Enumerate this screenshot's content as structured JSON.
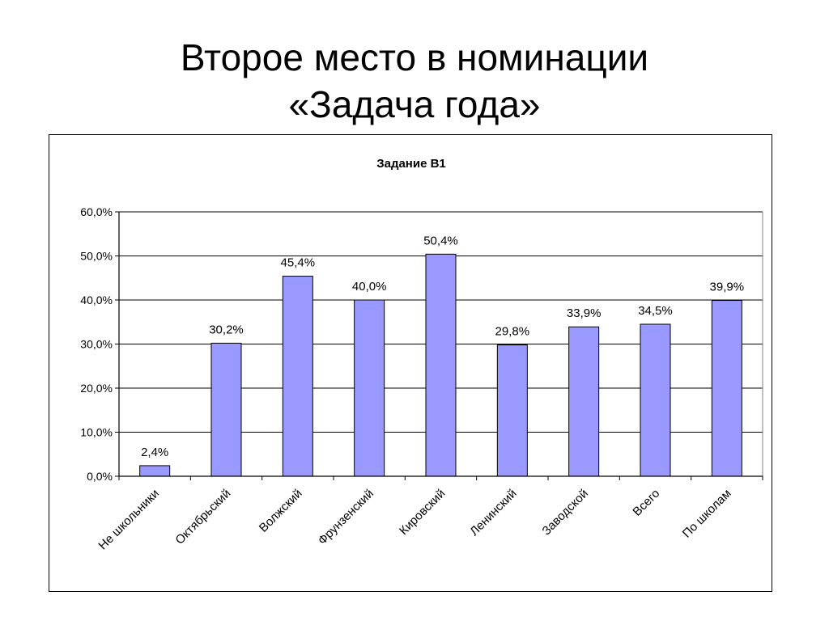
{
  "slide": {
    "title_line1": "Второе место в номинации",
    "title_line2": "«Задача года»"
  },
  "chart_data": {
    "type": "bar",
    "title": "Задание В1",
    "xlabel": "",
    "ylabel": "",
    "categories": [
      "Не школьники",
      "Октябрьский",
      "Волжский",
      "Фрунзенский",
      "Кировский",
      "Ленинский",
      "Заводской",
      "Всего",
      "По школам"
    ],
    "values": [
      2.4,
      30.2,
      45.4,
      40.0,
      50.4,
      29.8,
      33.9,
      34.5,
      39.9
    ],
    "data_labels": [
      "2,4%",
      "30,2%",
      "45,4%",
      "40,0%",
      "50,4%",
      "29,8%",
      "33,9%",
      "34,5%",
      "39,9%"
    ],
    "ylim": [
      0,
      60
    ],
    "yticks": [
      0,
      10,
      20,
      30,
      40,
      50,
      60
    ],
    "ytick_labels": [
      "0,0%",
      "10,0%",
      "20,0%",
      "30,0%",
      "40,0%",
      "50,0%",
      "60,0%"
    ],
    "grid": true,
    "legend": "none",
    "colors": {
      "bar_fill": "#9999ff",
      "bar_stroke": "#000000",
      "grid": "#000000"
    }
  }
}
